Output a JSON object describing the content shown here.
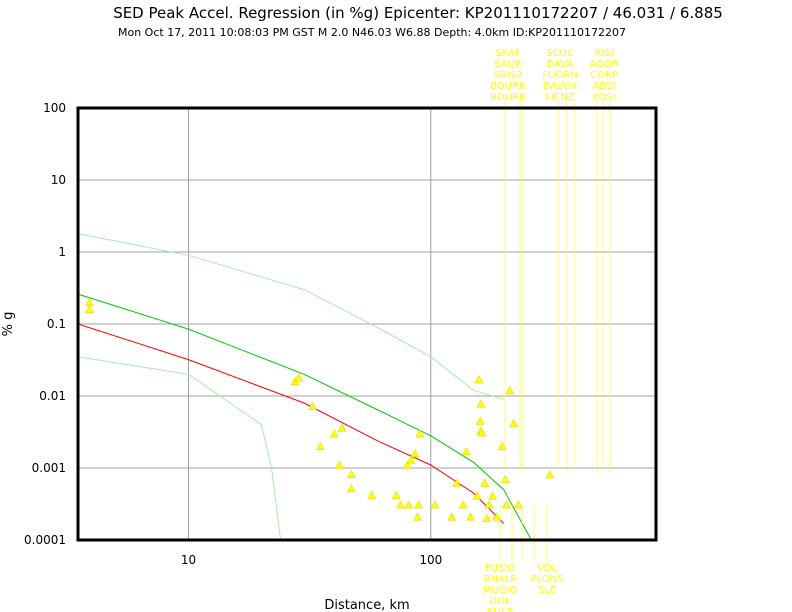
{
  "chart_data": {
    "type": "scatter",
    "title": "SED Peak Accel. Regression (in %g) Epicenter: KP201110172207 / 46.031 / 6.885",
    "subtitle": "Mon Oct 17, 2011 10:08:03 PM GST   M 2.0   N46.03 W6.88   Depth: 4.0km   ID:KP201110172207",
    "xlabel": "Distance, km",
    "ylabel": "% g",
    "xscale": "log",
    "yscale": "log",
    "xlim": [
      3.5,
      850
    ],
    "ylim": [
      0.0001,
      100
    ],
    "grid": true,
    "x_tick_labels": [
      "10",
      "100"
    ],
    "y_tick_labels": [
      "100",
      "10",
      "1",
      "0.1",
      "0.01",
      "0.001",
      "0.0001"
    ],
    "y_tick_values": [
      100,
      10,
      1,
      0.1,
      0.01,
      0.001,
      0.0001
    ],
    "x_tick_values": [
      10,
      100
    ],
    "station_labels_top": [
      [
        "SKAF",
        "SAUR",
        "SBIS2",
        "BOURR",
        "BOURR"
      ],
      [
        "SCUC",
        "DAVA",
        "FUORN",
        "DAVOX",
        "LIENZ"
      ],
      [
        "RISI",
        "AGOR",
        "CORP",
        "ABSI",
        "KOSI"
      ]
    ],
    "station_labels_bottom": [
      [
        "FUSIO",
        "BNALP",
        "MUGIO",
        "DOL",
        "SULZ"
      ],
      [
        "VDL",
        "PLONS",
        "SLE"
      ]
    ],
    "regression_mean": [
      [
        3.5,
        0.1
      ],
      [
        10,
        0.032
      ],
      [
        30,
        0.008
      ],
      [
        60,
        0.0024
      ],
      [
        100,
        0.0011
      ],
      [
        150,
        0.00045
      ],
      [
        200,
        0.00017
      ]
    ],
    "regression_upper": [
      [
        3.5,
        0.26
      ],
      [
        10,
        0.085
      ],
      [
        30,
        0.02
      ],
      [
        60,
        0.0065
      ],
      [
        100,
        0.0028
      ],
      [
        150,
        0.0012
      ],
      [
        200,
        0.0005
      ],
      [
        260,
        0.0001
      ]
    ],
    "regression_upper_outer": [
      [
        3.5,
        1.8
      ],
      [
        10,
        0.9
      ],
      [
        30,
        0.3
      ],
      [
        60,
        0.09
      ],
      [
        100,
        0.035
      ],
      [
        150,
        0.012
      ],
      [
        200,
        0.009
      ]
    ],
    "regression_lower_outer": [
      [
        3.5,
        0.035
      ],
      [
        10,
        0.02
      ],
      [
        20,
        0.004
      ],
      [
        22,
        0.001
      ],
      [
        24,
        0.0001
      ]
    ],
    "points": [
      {
        "x": 3.9,
        "y": 0.2
      },
      {
        "x": 3.9,
        "y": 0.16
      },
      {
        "x": 27.5,
        "y": 0.016
      },
      {
        "x": 28.5,
        "y": 0.018
      },
      {
        "x": 32.5,
        "y": 0.0072
      },
      {
        "x": 35,
        "y": 0.002
      },
      {
        "x": 40,
        "y": 0.003
      },
      {
        "x": 43,
        "y": 0.0036
      },
      {
        "x": 42,
        "y": 0.0011
      },
      {
        "x": 47,
        "y": 0.00082
      },
      {
        "x": 47,
        "y": 0.00052
      },
      {
        "x": 57,
        "y": 0.00042
      },
      {
        "x": 72,
        "y": 0.00042
      },
      {
        "x": 75,
        "y": 0.00031
      },
      {
        "x": 80,
        "y": 0.0011
      },
      {
        "x": 83,
        "y": 0.0013
      },
      {
        "x": 86,
        "y": 0.0016
      },
      {
        "x": 81,
        "y": 0.00031
      },
      {
        "x": 89,
        "y": 0.00031
      },
      {
        "x": 90,
        "y": 0.003
      },
      {
        "x": 88,
        "y": 0.00021
      },
      {
        "x": 104,
        "y": 0.00031
      },
      {
        "x": 122,
        "y": 0.00021
      },
      {
        "x": 128,
        "y": 0.00062
      },
      {
        "x": 136,
        "y": 0.00031
      },
      {
        "x": 140,
        "y": 0.0017
      },
      {
        "x": 146,
        "y": 0.00021
      },
      {
        "x": 155,
        "y": 0.00041
      },
      {
        "x": 158,
        "y": 0.017
      },
      {
        "x": 160,
        "y": 0.0045
      },
      {
        "x": 161,
        "y": 0.0078
      },
      {
        "x": 161,
        "y": 0.0033
      },
      {
        "x": 162,
        "y": 0.0031
      },
      {
        "x": 167,
        "y": 0.00062
      },
      {
        "x": 170,
        "y": 0.0002
      },
      {
        "x": 174,
        "y": 0.00031
      },
      {
        "x": 180,
        "y": 0.00041
      },
      {
        "x": 187,
        "y": 0.00021
      },
      {
        "x": 197,
        "y": 0.002
      },
      {
        "x": 203,
        "y": 0.0007
      },
      {
        "x": 205,
        "y": 0.00031
      },
      {
        "x": 212,
        "y": 0.012
      },
      {
        "x": 220,
        "y": 0.0042
      },
      {
        "x": 230,
        "y": 0.00031
      },
      {
        "x": 310,
        "y": 0.00081
      }
    ],
    "colors": {
      "mean": "#ff0000",
      "upper": "#00cc00",
      "outer": "#a8ecac",
      "points": "#ffff00",
      "stations": "#ffff00",
      "grid": "#a0a0a0"
    }
  }
}
